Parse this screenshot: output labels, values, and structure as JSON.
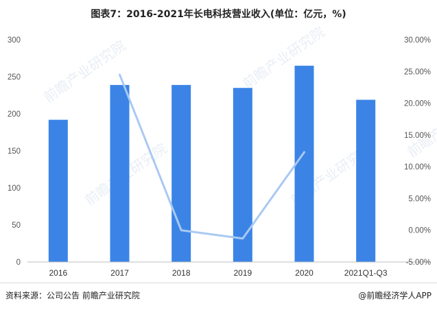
{
  "title": "图表7：2016-2021年长电科技营业收入(单位：亿元，%)",
  "footer": {
    "source": "资料来源：公司公告 前瞻产业研究院",
    "brand": "@前瞻经济学人APP"
  },
  "watermark": "前瞻产业研究院",
  "colors": {
    "bar": "#3b84e6",
    "line": "#a9c9f2",
    "axis": "#bfbfbf"
  },
  "chart_data": {
    "type": "bar",
    "categories": [
      "2016",
      "2017",
      "2018",
      "2019",
      "2020",
      "2021Q1-Q3"
    ],
    "series": [
      {
        "type": "bar",
        "axis": "left",
        "values": [
          192,
          239,
          239,
          235,
          265,
          219
        ]
      },
      {
        "type": "line",
        "axis": "right",
        "values": [
          null,
          24.5,
          0.0,
          -1.3,
          12.3,
          null
        ]
      }
    ],
    "y_left": {
      "min": 0,
      "max": 300,
      "ticks": [
        "0",
        "50",
        "100",
        "150",
        "200",
        "250",
        "300"
      ]
    },
    "y_right": {
      "min": -5,
      "max": 30,
      "ticks": [
        "-5.00%",
        "0.00%",
        "5.00%",
        "10.00%",
        "15.00%",
        "20.00%",
        "25.00%",
        "30.00%"
      ]
    },
    "grid": false
  }
}
